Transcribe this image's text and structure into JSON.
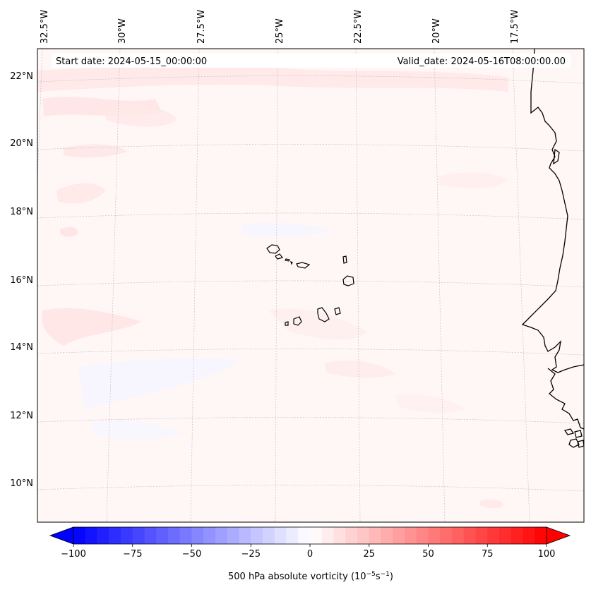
{
  "header": {
    "start_date": "Start date: 2024-05-15_00:00:00",
    "valid_date": "Valid_date: 2024-05-16T08:00:00.00"
  },
  "axes": {
    "lon_labels": [
      "32.5°W",
      "30°W",
      "27.5°W",
      "25°W",
      "22.5°W",
      "20°W",
      "17.5°W"
    ],
    "lat_labels": [
      "22°N",
      "20°N",
      "18°N",
      "16°N",
      "14°N",
      "12°N",
      "10°N"
    ]
  },
  "colorbar": {
    "label_prefix": "500 hPa absolute vorticity (10",
    "label_exp1": "−5",
    "label_mid": "s",
    "label_exp2": "−1",
    "label_suffix": ")",
    "ticks": [
      "−100",
      "−75",
      "−50",
      "−25",
      "0",
      "25",
      "50",
      "75",
      "100"
    ],
    "vmin": -100,
    "vmax": 100,
    "levels": 40,
    "colormap": "bwr",
    "color_low": "#0000ff",
    "color_mid": "#ffffff",
    "color_high": "#ff0000"
  },
  "map": {
    "projection": "lambert",
    "coastline_color": "#000000",
    "gridline_color": "#bbbbbb",
    "field_base_color": "#fff6f6"
  }
}
